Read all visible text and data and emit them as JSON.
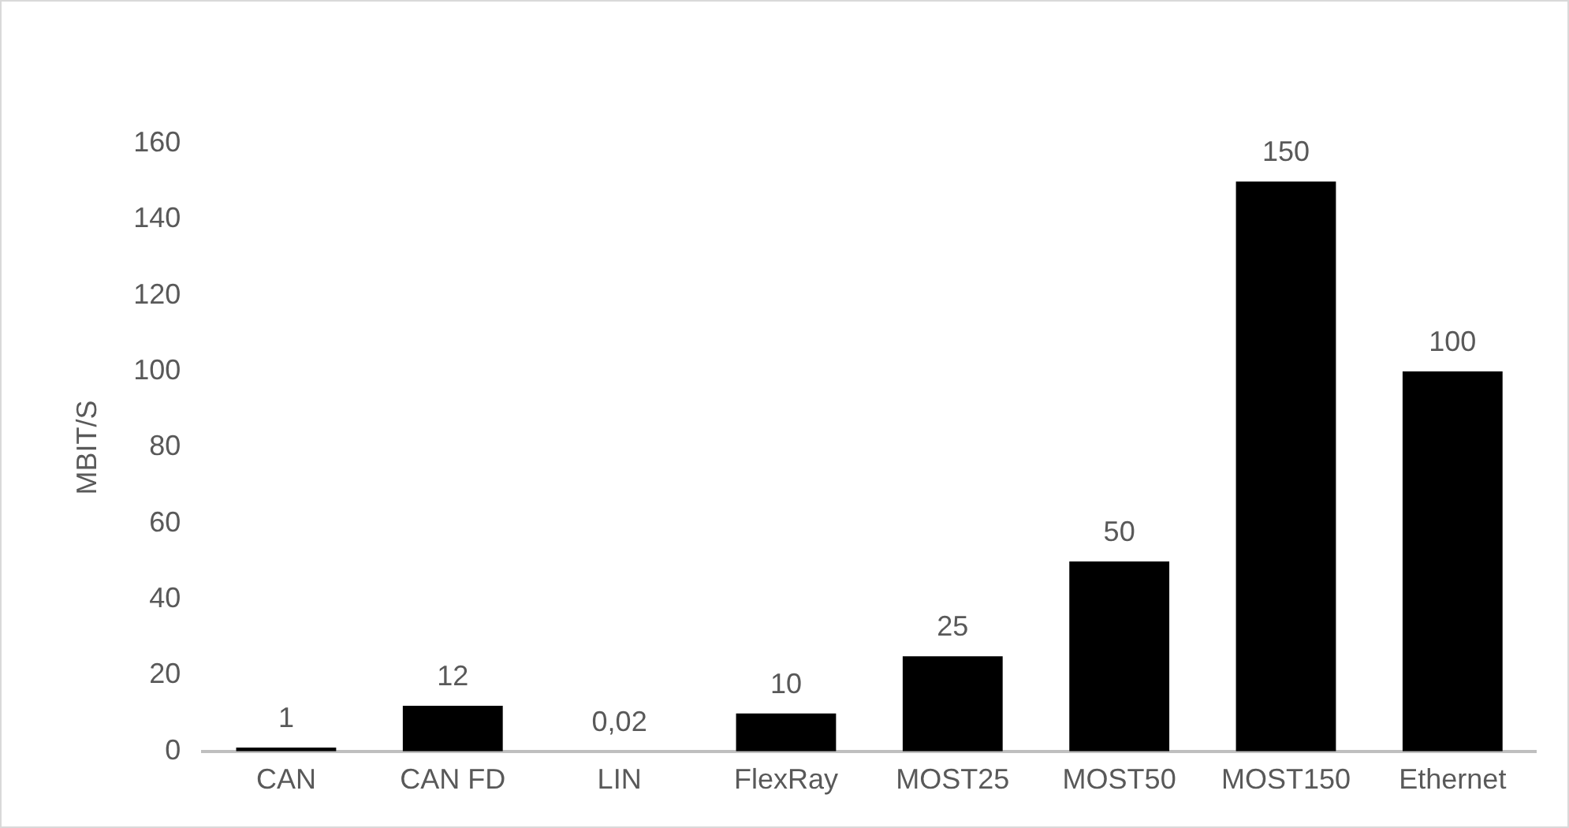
{
  "chart_data": {
    "type": "bar",
    "ylabel": "MBIT/S",
    "categories": [
      "CAN",
      "CAN FD",
      "LIN",
      "FlexRay",
      "MOST25",
      "MOST50",
      "MOST150",
      "Ethernet"
    ],
    "values": [
      1,
      12,
      0.02,
      10,
      25,
      50,
      150,
      100
    ],
    "value_labels": [
      "1",
      "12",
      "0,02",
      "10",
      "25",
      "50",
      "150",
      "100"
    ],
    "color": "#000000",
    "ylim": [
      0,
      160
    ],
    "yticks": [
      0,
      20,
      40,
      60,
      80,
      100,
      120,
      140,
      160
    ],
    "grid": false,
    "legend": false
  }
}
